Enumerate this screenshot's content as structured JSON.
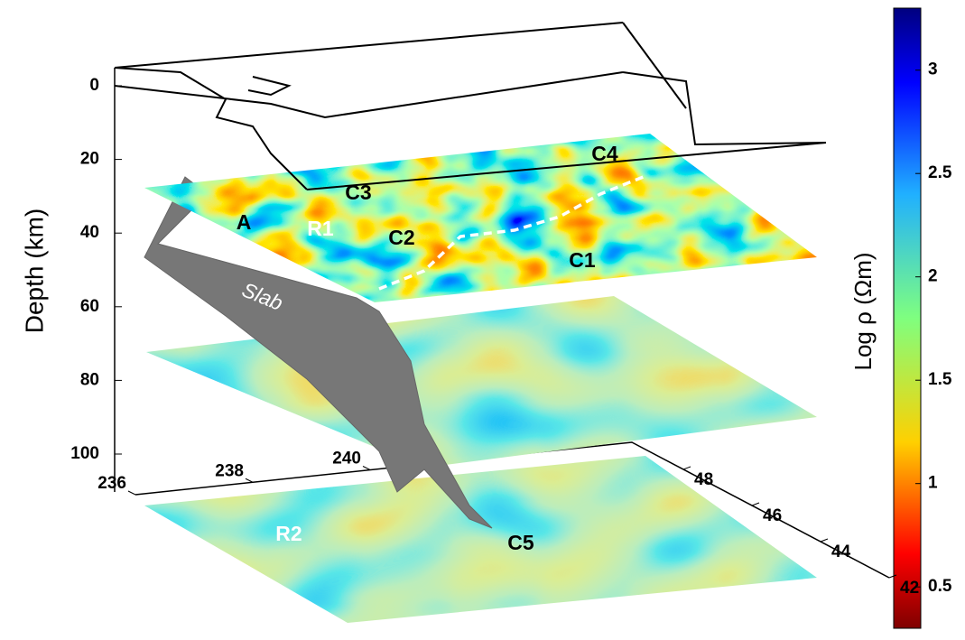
{
  "chart_data": {
    "type": "slices3d",
    "depth_label": "Depth (km)",
    "depth_lim": [
      0,
      100
    ],
    "depth_ticks": [
      0,
      20,
      40,
      60,
      80,
      100
    ],
    "xlim": [
      236,
      244
    ],
    "xticks": [
      236,
      238,
      240
    ],
    "ylim": [
      49.5,
      42
    ],
    "yticks": [
      48,
      46,
      44,
      42
    ],
    "colorbar_label": "Log ρ (Ωm)",
    "clim": [
      0.3,
      3.3
    ],
    "cticks": [
      0.5,
      1,
      1.5,
      2,
      2.5,
      3
    ],
    "annotations": [
      "A",
      "R1",
      "C3",
      "C2",
      "C4",
      "C1",
      "Slab",
      "R2",
      "C5"
    ]
  }
}
